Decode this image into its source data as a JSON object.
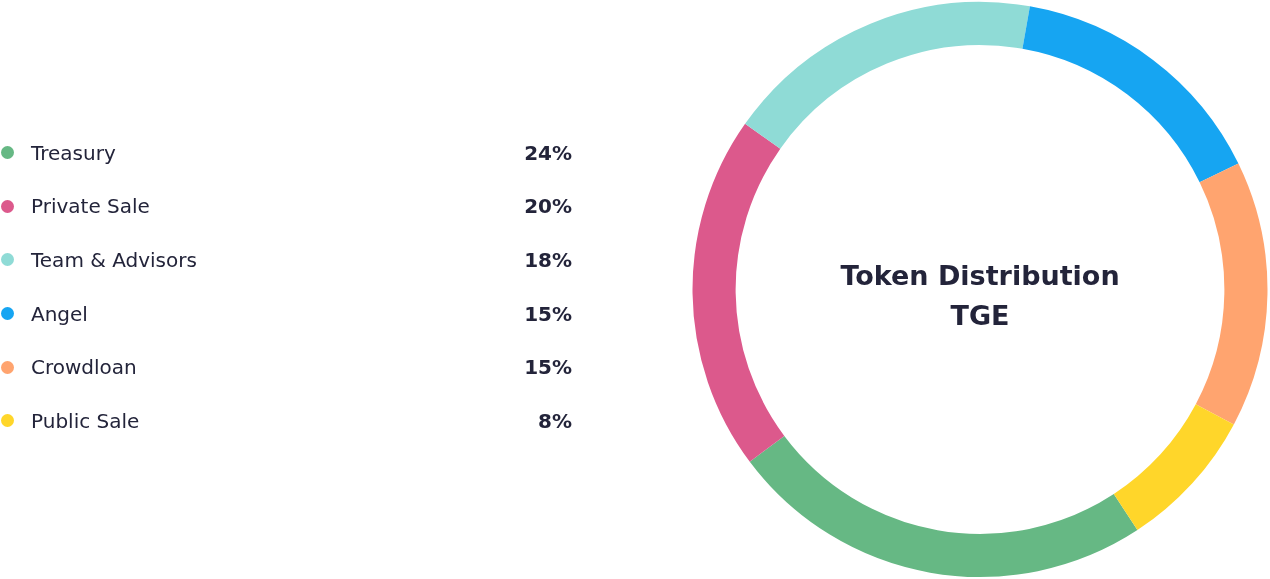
{
  "chart_data": {
    "type": "donut",
    "title": "Token Distribution",
    "subtitle": "TGE",
    "categories": [
      "Treasury",
      "Private Sale",
      "Team & Advisors",
      "Angel",
      "Crowdloan",
      "Public Sale"
    ],
    "values": [
      24,
      20,
      18,
      15,
      15,
      8
    ],
    "colors": [
      "#66b884",
      "#dc598c",
      "#8fdbd6",
      "#16a5f2",
      "#ffa46f",
      "#ffd62a"
    ],
    "value_labels": [
      "24%",
      "20%",
      "18%",
      "15%",
      "15%",
      "8%"
    ],
    "legend": "left"
  }
}
